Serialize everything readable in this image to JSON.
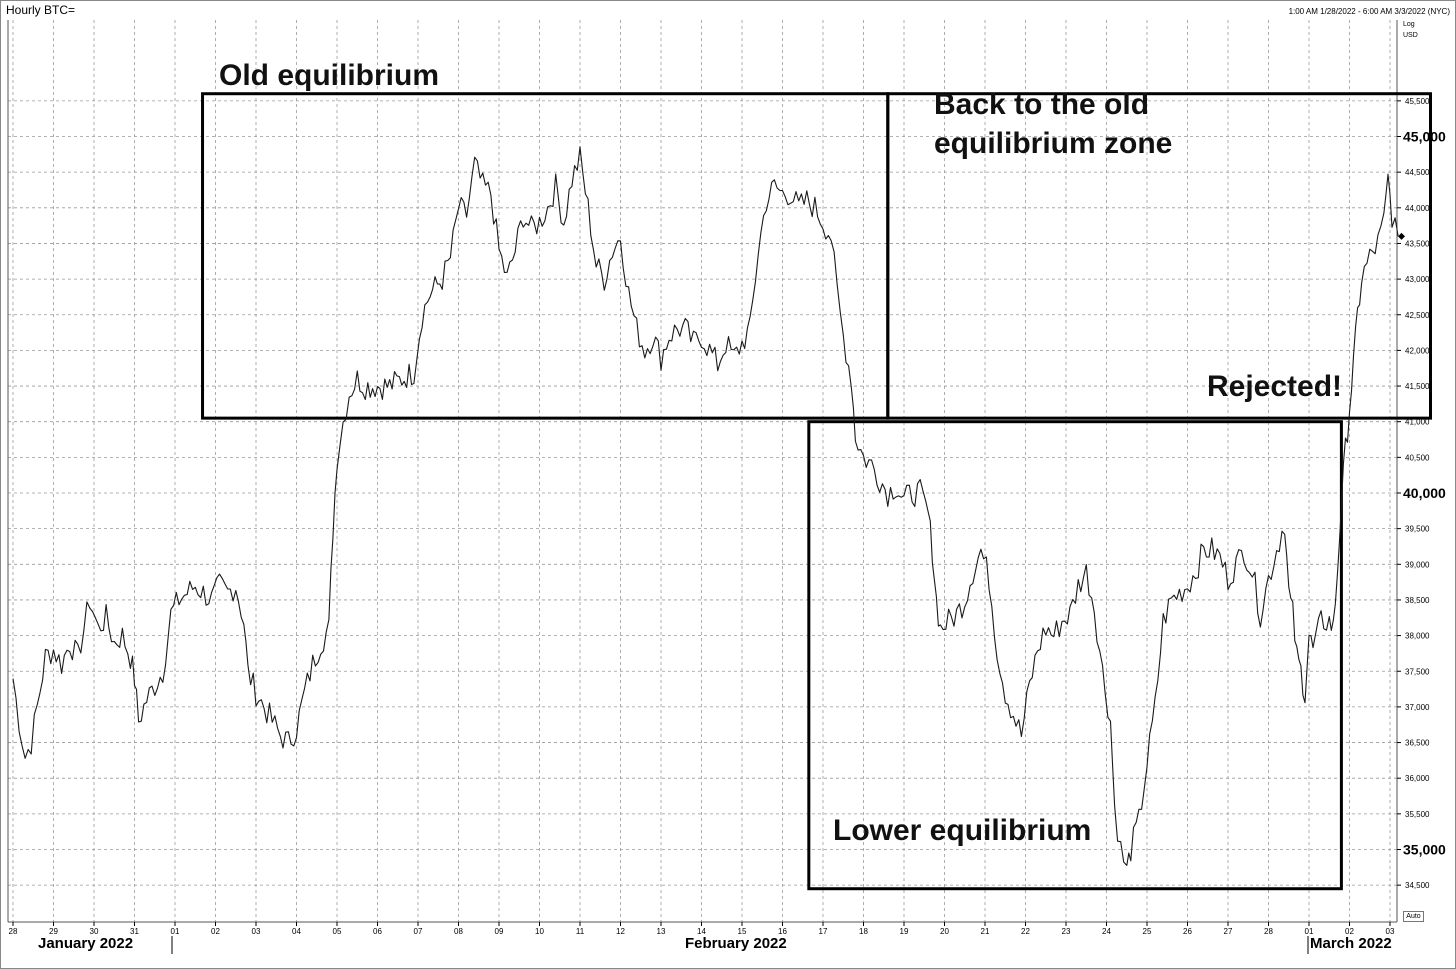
{
  "header": {
    "title": "Hourly BTC=",
    "range": "1:00 AM 1/28/2022 - 6:00 AM 3/3/2022 (NYC)",
    "scale_label": "Log",
    "currency_label": "USD",
    "auto_label": "Auto"
  },
  "annotations": {
    "old_equilibrium": "Old equilibrium",
    "back_line1": "Back to the old",
    "back_line2": "equilibrium zone",
    "rejected": "Rejected!",
    "lower_equilibrium": "Lower equilibrium"
  },
  "months": {
    "january": "January 2022",
    "february": "February 2022",
    "march": "March 2022"
  },
  "colors": {
    "background": "#ffffff",
    "price_line": "#1a1a1a",
    "grid": "#9a9a9a",
    "box": "#000000"
  },
  "chart_data": {
    "type": "line",
    "title": "Hourly BTC=",
    "ylabel": "USD",
    "y_scale": "log",
    "ylim": [
      34300,
      46000
    ],
    "grid": true,
    "x_ticks": [
      "28",
      "29",
      "30",
      "31",
      "01",
      "02",
      "03",
      "04",
      "05",
      "06",
      "07",
      "08",
      "09",
      "10",
      "11",
      "12",
      "13",
      "14",
      "15",
      "16",
      "17",
      "18",
      "19",
      "20",
      "21",
      "22",
      "23",
      "24",
      "25",
      "26",
      "27",
      "28",
      "01",
      "02",
      "03"
    ],
    "y_ticks": [
      34500,
      35000,
      35500,
      36000,
      36500,
      37000,
      37500,
      38000,
      38500,
      39000,
      39500,
      40000,
      40500,
      41000,
      41500,
      42000,
      42500,
      43000,
      43500,
      44000,
      44500,
      45000,
      45500
    ],
    "y_tick_labels": [
      "34,500",
      "35,000",
      "35,500",
      "36,000",
      "36,500",
      "37,000",
      "37,500",
      "38,000",
      "38,500",
      "39,000",
      "39,500",
      "40,000",
      "40,500",
      "41,000",
      "41,500",
      "42,000",
      "42,500",
      "43,000",
      "43,500",
      "44,000",
      "44,500",
      "45,000",
      "45,500"
    ],
    "y_major": [
      35000,
      40000,
      45000
    ],
    "last_price": 43600,
    "x_unit": "days since Jan 28 2022 00:00",
    "series": [
      {
        "points": [
          [
            0.0,
            37400
          ],
          [
            0.15,
            36800
          ],
          [
            0.3,
            36300
          ],
          [
            0.45,
            36500
          ],
          [
            0.6,
            37000
          ],
          [
            0.8,
            37700
          ],
          [
            1.0,
            37800
          ],
          [
            1.2,
            37600
          ],
          [
            1.4,
            37900
          ],
          [
            1.6,
            37700
          ],
          [
            1.75,
            38100
          ],
          [
            1.9,
            38500
          ],
          [
            2.1,
            38100
          ],
          [
            2.3,
            38250
          ],
          [
            2.5,
            37900
          ],
          [
            2.7,
            38000
          ],
          [
            2.9,
            37700
          ],
          [
            3.0,
            37400
          ],
          [
            3.1,
            36800
          ],
          [
            3.3,
            37100
          ],
          [
            3.5,
            37300
          ],
          [
            3.7,
            37500
          ],
          [
            3.9,
            38300
          ],
          [
            4.1,
            38500
          ],
          [
            4.3,
            38600
          ],
          [
            4.5,
            38700
          ],
          [
            4.7,
            38600
          ],
          [
            4.9,
            38500
          ],
          [
            5.1,
            38700
          ],
          [
            5.3,
            38600
          ],
          [
            5.5,
            38700
          ],
          [
            5.7,
            38200
          ],
          [
            5.8,
            37500
          ],
          [
            6.0,
            37200
          ],
          [
            6.2,
            37000
          ],
          [
            6.4,
            36800
          ],
          [
            6.6,
            36600
          ],
          [
            6.8,
            36500
          ],
          [
            7.0,
            36700
          ],
          [
            7.2,
            37200
          ],
          [
            7.4,
            37600
          ],
          [
            7.6,
            37900
          ],
          [
            7.8,
            38100
          ],
          [
            7.9,
            39500
          ],
          [
            8.0,
            40500
          ],
          [
            8.15,
            41000
          ],
          [
            8.3,
            41400
          ],
          [
            8.5,
            41600
          ],
          [
            8.7,
            41500
          ],
          [
            9.0,
            41500
          ],
          [
            9.3,
            41500
          ],
          [
            9.6,
            41600
          ],
          [
            9.9,
            41700
          ],
          [
            10.1,
            42500
          ],
          [
            10.3,
            42800
          ],
          [
            10.6,
            43000
          ],
          [
            10.8,
            43300
          ],
          [
            11.0,
            44000
          ],
          [
            11.2,
            43900
          ],
          [
            11.4,
            44600
          ],
          [
            11.6,
            44300
          ],
          [
            11.8,
            44200
          ],
          [
            12.0,
            43400
          ],
          [
            12.2,
            43000
          ],
          [
            12.4,
            43400
          ],
          [
            12.6,
            43900
          ],
          [
            12.8,
            43700
          ],
          [
            13.0,
            43800
          ],
          [
            13.2,
            44000
          ],
          [
            13.4,
            44300
          ],
          [
            13.6,
            43800
          ],
          [
            13.8,
            44400
          ],
          [
            14.0,
            44700
          ],
          [
            14.2,
            44000
          ],
          [
            14.4,
            43200
          ],
          [
            14.6,
            43000
          ],
          [
            14.8,
            43400
          ],
          [
            15.0,
            43600
          ],
          [
            15.2,
            42800
          ],
          [
            15.4,
            42300
          ],
          [
            15.6,
            42000
          ],
          [
            15.8,
            42200
          ],
          [
            16.0,
            41900
          ],
          [
            16.2,
            42200
          ],
          [
            16.4,
            42300
          ],
          [
            16.6,
            42300
          ],
          [
            16.8,
            42100
          ],
          [
            17.0,
            42200
          ],
          [
            17.2,
            42000
          ],
          [
            17.4,
            41800
          ],
          [
            17.6,
            42100
          ],
          [
            17.8,
            41900
          ],
          [
            18.0,
            42100
          ],
          [
            18.2,
            42300
          ],
          [
            18.4,
            43400
          ],
          [
            18.6,
            44100
          ],
          [
            18.8,
            44300
          ],
          [
            19.0,
            44200
          ],
          [
            19.2,
            44200
          ],
          [
            19.4,
            44000
          ],
          [
            19.6,
            44100
          ],
          [
            19.8,
            44000
          ],
          [
            20.0,
            43800
          ],
          [
            20.2,
            43600
          ],
          [
            20.35,
            42800
          ],
          [
            20.5,
            42200
          ],
          [
            20.7,
            41600
          ],
          [
            20.8,
            40800
          ],
          [
            21.0,
            40500
          ],
          [
            21.2,
            40400
          ],
          [
            21.4,
            40200
          ],
          [
            21.6,
            40000
          ],
          [
            21.8,
            40100
          ],
          [
            22.0,
            39900
          ],
          [
            22.2,
            40000
          ],
          [
            22.4,
            40000
          ],
          [
            22.6,
            39700
          ],
          [
            22.7,
            39200
          ],
          [
            22.8,
            38500
          ],
          [
            22.9,
            38100
          ],
          [
            23.1,
            38200
          ],
          [
            23.3,
            38300
          ],
          [
            23.5,
            38500
          ],
          [
            23.7,
            38900
          ],
          [
            23.9,
            39200
          ],
          [
            24.1,
            38800
          ],
          [
            24.3,
            37800
          ],
          [
            24.5,
            37200
          ],
          [
            24.7,
            36900
          ],
          [
            24.9,
            36600
          ],
          [
            25.1,
            37300
          ],
          [
            25.3,
            37800
          ],
          [
            25.5,
            38100
          ],
          [
            25.7,
            38000
          ],
          [
            25.9,
            38200
          ],
          [
            26.1,
            38300
          ],
          [
            26.3,
            38700
          ],
          [
            26.5,
            38900
          ],
          [
            26.7,
            38400
          ],
          [
            26.9,
            37500
          ],
          [
            27.1,
            36800
          ],
          [
            27.2,
            35600
          ],
          [
            27.35,
            35000
          ],
          [
            27.5,
            34700
          ],
          [
            27.6,
            35000
          ],
          [
            27.8,
            35400
          ],
          [
            28.0,
            36200
          ],
          [
            28.2,
            37000
          ],
          [
            28.4,
            38200
          ],
          [
            28.6,
            38500
          ],
          [
            28.8,
            38600
          ],
          [
            29.0,
            38700
          ],
          [
            29.2,
            38900
          ],
          [
            29.4,
            39200
          ],
          [
            29.6,
            39200
          ],
          [
            29.8,
            39100
          ],
          [
            30.0,
            38800
          ],
          [
            30.2,
            39000
          ],
          [
            30.4,
            39200
          ],
          [
            30.6,
            38900
          ],
          [
            30.8,
            38300
          ],
          [
            31.0,
            38800
          ],
          [
            31.2,
            39200
          ],
          [
            31.4,
            39600
          ],
          [
            31.5,
            38600
          ],
          [
            31.6,
            38300
          ],
          [
            31.7,
            37700
          ],
          [
            31.8,
            37500
          ],
          [
            31.9,
            37200
          ],
          [
            32.0,
            38000
          ],
          [
            32.1,
            37800
          ],
          [
            32.3,
            38200
          ],
          [
            32.5,
            38200
          ],
          [
            32.6,
            38100
          ],
          [
            32.7,
            38900
          ],
          [
            32.8,
            39900
          ],
          [
            32.9,
            40600
          ],
          [
            33.0,
            41200
          ],
          [
            33.1,
            41800
          ],
          [
            33.2,
            42500
          ],
          [
            33.3,
            43000
          ],
          [
            33.5,
            43300
          ],
          [
            33.7,
            43500
          ],
          [
            33.85,
            43800
          ],
          [
            33.95,
            44400
          ],
          [
            34.05,
            43900
          ],
          [
            34.2,
            43600
          ]
        ]
      }
    ],
    "boxes": [
      {
        "label": "Old equilibrium",
        "x_start": 4.68,
        "x_end": 21.6,
        "y_top": 45600,
        "y_bottom": 41050
      },
      {
        "label": "Back to the old equilibrium zone",
        "x_start": 21.6,
        "x_end": 35.0,
        "y_top": 45600,
        "y_bottom": 41050
      },
      {
        "label": "Lower equilibrium",
        "x_start": 19.65,
        "x_end": 32.8,
        "y_top": 41000,
        "y_bottom": 34450
      }
    ]
  }
}
